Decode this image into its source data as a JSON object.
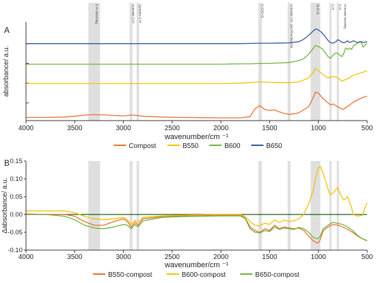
{
  "figure": {
    "band_labels": [
      {
        "text": "C-H Streching",
        "x": 3300
      },
      {
        "text": "Aromatic C-H",
        "x": 2922
      },
      {
        "text": "Symetric C-H",
        "x": 2852
      },
      {
        "text": "C=C/C=O",
        "x": 1597
      },
      {
        "text": "Aromatic CO- and Phenolic-OH",
        "x": 1300
      },
      {
        "text": "Si-O-Si",
        "x": 1030
      },
      {
        "text": "C-H",
        "x": 876
      },
      {
        "text": "C-H",
        "x": 800
      },
      {
        "text": "Aromatic bending",
        "x": 750
      }
    ]
  },
  "colors": {
    "orange": "#E8702C",
    "yellow": "#F2C100",
    "green": "#6BB33A",
    "blue": "#2E5597",
    "band": "#D9D9D9",
    "axis": "#333333"
  },
  "chart_data": [
    {
      "type": "line",
      "panel": "A",
      "xlabel": "wavenumber/cm ⁻¹",
      "ylabel": "absorbance/ a.u.",
      "xlim": [
        4000,
        500
      ],
      "x_reversed": true,
      "xticks": [
        4000,
        3500,
        3000,
        2500,
        2000,
        1500,
        1000,
        500
      ],
      "bands": [
        3300,
        2922,
        2852,
        1597,
        1300,
        1030,
        876,
        800
      ],
      "legend": "bottom",
      "series": [
        {
          "name": "Compost",
          "color": "#E8702C",
          "x": [
            4000,
            3800,
            3600,
            3500,
            3400,
            3300,
            3200,
            3100,
            3000,
            2920,
            2860,
            2800,
            2600,
            2400,
            2200,
            2000,
            1800,
            1700,
            1650,
            1600,
            1550,
            1500,
            1450,
            1400,
            1350,
            1300,
            1250,
            1200,
            1100,
            1050,
            1030,
            1000,
            950,
            900,
            875,
            850,
            800,
            750,
            700,
            650,
            600,
            550,
            500
          ],
          "y": [
            0.08,
            0.08,
            0.09,
            0.11,
            0.14,
            0.15,
            0.145,
            0.13,
            0.12,
            0.14,
            0.13,
            0.11,
            0.09,
            0.08,
            0.075,
            0.07,
            0.07,
            0.1,
            0.3,
            0.38,
            0.28,
            0.26,
            0.27,
            0.22,
            0.18,
            0.16,
            0.17,
            0.2,
            0.35,
            0.6,
            0.72,
            0.7,
            0.55,
            0.45,
            0.4,
            0.42,
            0.35,
            0.28,
            0.36,
            0.45,
            0.52,
            0.58,
            0.62
          ]
        },
        {
          "name": "B550",
          "color": "#F2C100",
          "x": [
            4000,
            3500,
            3000,
            2500,
            2000,
            1800,
            1600,
            1500,
            1400,
            1300,
            1200,
            1100,
            1050,
            1030,
            1000,
            950,
            900,
            850,
            820,
            800,
            760,
            700,
            650,
            600,
            550,
            500
          ],
          "y": [
            0.94,
            0.94,
            0.94,
            0.94,
            0.94,
            0.95,
            0.98,
            0.97,
            0.96,
            0.96,
            0.98,
            1.08,
            1.24,
            1.32,
            1.27,
            1.16,
            1.08,
            1.12,
            1.1,
            1.08,
            1.0,
            1.06,
            1.14,
            1.18,
            1.22,
            1.26
          ]
        },
        {
          "name": "B600",
          "color": "#6BB33A",
          "x": [
            4000,
            3500,
            3000,
            2500,
            2000,
            1800,
            1700,
            1600,
            1500,
            1400,
            1300,
            1200,
            1150,
            1100,
            1050,
            1030,
            1000,
            960,
            930,
            900,
            875,
            850,
            820,
            800,
            780,
            760,
            740,
            720,
            700,
            680,
            660,
            640,
            620,
            600,
            580,
            560,
            540,
            520,
            500
          ],
          "y": [
            1.43,
            1.43,
            1.43,
            1.43,
            1.43,
            1.44,
            1.44,
            1.45,
            1.45,
            1.46,
            1.47,
            1.52,
            1.57,
            1.68,
            1.84,
            1.9,
            1.88,
            1.82,
            1.72,
            1.62,
            1.58,
            1.66,
            1.72,
            1.7,
            1.66,
            1.62,
            1.7,
            1.84,
            1.8,
            1.84,
            1.8,
            1.9,
            1.92,
            1.96,
            2.0,
            1.98,
            1.86,
            1.92,
            1.97
          ]
        },
        {
          "name": "B650",
          "color": "#2E5597",
          "x": [
            4000,
            3500,
            3000,
            2500,
            2000,
            1800,
            1700,
            1600,
            1500,
            1400,
            1300,
            1200,
            1150,
            1100,
            1050,
            1030,
            1000,
            970,
            940,
            910,
            880,
            850,
            820,
            800,
            780,
            760,
            740,
            720,
            700,
            680,
            660,
            640,
            620,
            600,
            580,
            560,
            540,
            520,
            500
          ],
          "y": [
            1.95,
            1.95,
            1.95,
            1.95,
            1.95,
            1.95,
            1.955,
            1.96,
            1.96,
            1.965,
            1.97,
            2.0,
            2.06,
            2.16,
            2.28,
            2.32,
            2.3,
            2.24,
            2.16,
            2.06,
            1.98,
            1.96,
            2.0,
            2.05,
            2.02,
            1.99,
            1.97,
            1.99,
            2.02,
            1.98,
            2.0,
            2.02,
            2.0,
            1.98,
            1.99,
            2.0,
            1.98,
            1.99,
            2.0
          ]
        }
      ]
    },
    {
      "type": "line",
      "panel": "B",
      "xlabel": "wavenumber/cm ⁻¹",
      "ylabel": "Δabsorbance/ a.u.",
      "xlim": [
        4000,
        500
      ],
      "x_reversed": true,
      "ylim": [
        -0.1,
        0.15
      ],
      "xticks": [
        4000,
        3500,
        3000,
        2500,
        2000,
        1500,
        1000,
        500
      ],
      "yticks": [
        -0.1,
        -0.05,
        0.0,
        0.05,
        0.1,
        0.15
      ],
      "bands": [
        3300,
        2922,
        2852,
        1597,
        1300,
        1030,
        876,
        800
      ],
      "legend": "bottom",
      "series": [
        {
          "name": "B550-compost",
          "color": "#E8702C",
          "x": [
            4000,
            3800,
            3600,
            3500,
            3400,
            3300,
            3200,
            3100,
            3000,
            2960,
            2920,
            2880,
            2850,
            2800,
            2600,
            2400,
            2200,
            2000,
            1800,
            1750,
            1700,
            1650,
            1600,
            1550,
            1500,
            1450,
            1400,
            1350,
            1300,
            1250,
            1200,
            1150,
            1100,
            1050,
            1000,
            980,
            950,
            900,
            850,
            800,
            750,
            700,
            650,
            600,
            550,
            500
          ],
          "y": [
            0.0,
            0.0,
            0.0,
            -0.005,
            -0.02,
            -0.03,
            -0.03,
            -0.02,
            -0.012,
            -0.02,
            -0.035,
            -0.022,
            -0.03,
            -0.012,
            -0.006,
            -0.004,
            -0.003,
            -0.002,
            -0.002,
            -0.01,
            -0.035,
            -0.045,
            -0.05,
            -0.04,
            -0.045,
            -0.03,
            -0.04,
            -0.035,
            -0.038,
            -0.04,
            -0.038,
            -0.045,
            -0.06,
            -0.075,
            -0.08,
            -0.07,
            -0.045,
            -0.035,
            -0.028,
            -0.03,
            -0.035,
            -0.042,
            -0.05,
            -0.06,
            -0.068,
            -0.073
          ]
        },
        {
          "name": "B600-compost",
          "color": "#F2C100",
          "x": [
            4000,
            3800,
            3600,
            3500,
            3400,
            3300,
            3200,
            3100,
            3000,
            2960,
            2920,
            2880,
            2850,
            2800,
            2600,
            2400,
            2200,
            2000,
            1800,
            1750,
            1700,
            1650,
            1600,
            1550,
            1500,
            1450,
            1400,
            1350,
            1300,
            1250,
            1200,
            1150,
            1100,
            1050,
            1030,
            1000,
            980,
            950,
            900,
            880,
            850,
            820,
            800,
            780,
            760,
            740,
            720,
            700,
            680,
            660,
            640,
            600,
            550,
            520,
            500
          ],
          "y": [
            0.01,
            0.01,
            0.01,
            0.005,
            -0.005,
            -0.012,
            -0.015,
            -0.012,
            -0.008,
            -0.015,
            -0.028,
            -0.016,
            -0.022,
            -0.008,
            -0.004,
            -0.002,
            -0.001,
            0.0,
            0.0,
            -0.006,
            -0.02,
            -0.03,
            -0.032,
            -0.024,
            -0.028,
            -0.015,
            -0.022,
            -0.015,
            -0.02,
            -0.018,
            -0.012,
            0.0,
            0.03,
            0.07,
            0.1,
            0.13,
            0.135,
            0.115,
            0.07,
            0.055,
            0.06,
            0.07,
            0.076,
            0.06,
            0.05,
            0.04,
            0.045,
            0.05,
            0.035,
            0.02,
            0.0,
            -0.005,
            -0.002,
            0.02,
            0.033
          ]
        },
        {
          "name": "B650-compost",
          "color": "#6BB33A",
          "x": [
            4000,
            3800,
            3600,
            3500,
            3400,
            3300,
            3200,
            3100,
            3000,
            2960,
            2920,
            2880,
            2850,
            2800,
            2600,
            2400,
            2200,
            2000,
            1800,
            1750,
            1700,
            1650,
            1600,
            1550,
            1500,
            1450,
            1400,
            1350,
            1300,
            1250,
            1200,
            1150,
            1100,
            1050,
            1000,
            980,
            950,
            900,
            850,
            800,
            750,
            700,
            650,
            600,
            550,
            500
          ],
          "y": [
            0.002,
            0.0,
            -0.005,
            -0.015,
            -0.03,
            -0.038,
            -0.04,
            -0.035,
            -0.028,
            -0.03,
            -0.04,
            -0.028,
            -0.035,
            -0.018,
            -0.008,
            -0.006,
            -0.005,
            -0.004,
            -0.004,
            -0.012,
            -0.04,
            -0.05,
            -0.052,
            -0.045,
            -0.048,
            -0.035,
            -0.042,
            -0.038,
            -0.04,
            -0.042,
            -0.036,
            -0.04,
            -0.05,
            -0.065,
            -0.068,
            -0.06,
            -0.04,
            -0.03,
            -0.022,
            -0.025,
            -0.028,
            -0.035,
            -0.045,
            -0.058,
            -0.068,
            -0.074
          ]
        }
      ]
    }
  ]
}
